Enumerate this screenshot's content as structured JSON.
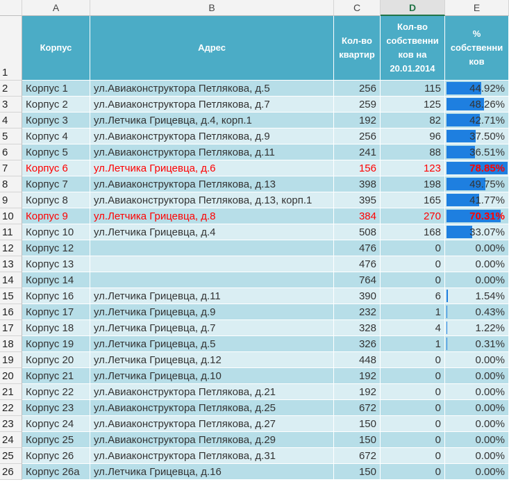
{
  "columns": [
    "A",
    "B",
    "C",
    "D",
    "E"
  ],
  "selected_column": 3,
  "row_numbers": [
    1,
    2,
    3,
    4,
    5,
    6,
    7,
    8,
    9,
    10,
    11,
    12,
    13,
    14,
    15,
    16,
    17,
    18,
    19,
    20,
    21,
    22,
    23,
    24,
    25,
    26
  ],
  "table": {
    "header": [
      [
        "Корпус"
      ],
      [
        "Адрес"
      ],
      [
        "Кол-во",
        "квартир"
      ],
      [
        "Кол-во",
        "собственни",
        "ков на",
        "20.01.2014"
      ],
      [
        "%",
        "собственни",
        "ков"
      ]
    ],
    "rows": [
      {
        "name": "Корпус 1",
        "address": "ул.Авиаконструктора Петлякова, д.5",
        "flats": 256,
        "owners": 115,
        "share": {
          "value": 44.92,
          "label": "44.92%"
        }
      },
      {
        "name": "Корпус 2",
        "address": "ул.Авиаконструктора Петлякова, д.7",
        "flats": 259,
        "owners": 125,
        "share": {
          "value": 48.26,
          "label": "48.26%"
        }
      },
      {
        "name": "Корпус 3",
        "address": "ул.Летчика Грицевца, д.4, корп.1",
        "flats": 192,
        "owners": 82,
        "share": {
          "value": 42.71,
          "label": "42.71%"
        }
      },
      {
        "name": "Корпус 4",
        "address": "ул.Авиаконструктора Петлякова, д.9",
        "flats": 256,
        "owners": 96,
        "share": {
          "value": 37.5,
          "label": "37.50%"
        }
      },
      {
        "name": "Корпус 5",
        "address": "ул.Авиаконструктора Петлякова, д.11",
        "flats": 241,
        "owners": 88,
        "share": {
          "value": 36.51,
          "label": "36.51%"
        }
      },
      {
        "name": "Корпус 6",
        "address": "ул.Летчика Грицевца, д.6",
        "flats": 156,
        "owners": 123,
        "share": {
          "value": 78.85,
          "label": "78.85%"
        },
        "highlighted": true
      },
      {
        "name": "Корпус 7",
        "address": "ул.Авиаконструктора Петлякова, д.13",
        "flats": 398,
        "owners": 198,
        "share": {
          "value": 49.75,
          "label": "49.75%"
        }
      },
      {
        "name": "Корпус 8",
        "address": "ул.Авиаконструктора Петлякова, д.13, корп.1",
        "flats": 395,
        "owners": 165,
        "share": {
          "value": 41.77,
          "label": "41.77%"
        }
      },
      {
        "name": "Корпус 9",
        "address": "ул.Летчика Грицевца, д.8",
        "flats": 384,
        "owners": 270,
        "share": {
          "value": 70.31,
          "label": "70.31%"
        },
        "highlighted": true
      },
      {
        "name": "Корпус 10",
        "address": "ул.Летчика Грицевца, д.4",
        "flats": 508,
        "owners": 168,
        "share": {
          "value": 33.07,
          "label": "33.07%"
        }
      },
      {
        "name": "Корпус 12",
        "address": null,
        "flats": 476,
        "owners": 0,
        "share": {
          "value": 0,
          "label": "0.00%"
        }
      },
      {
        "name": "Корпус 13",
        "address": null,
        "flats": 476,
        "owners": 0,
        "share": {
          "value": 0,
          "label": "0.00%"
        }
      },
      {
        "name": "Корпус 14",
        "address": null,
        "flats": 764,
        "owners": 0,
        "share": {
          "value": 0,
          "label": "0.00%"
        }
      },
      {
        "name": "Корпус 16",
        "address": "ул.Летчика Грицевца, д.11",
        "flats": 390,
        "owners": 6,
        "share": {
          "value": 1.54,
          "label": "1.54%"
        }
      },
      {
        "name": "Корпус 17",
        "address": "ул.Летчика Грицевца, д.9",
        "flats": 232,
        "owners": 1,
        "share": {
          "value": 0.43,
          "label": "0.43%"
        }
      },
      {
        "name": "Корпус 18",
        "address": "ул.Летчика Грицевца, д.7",
        "flats": 328,
        "owners": 4,
        "share": {
          "value": 1.22,
          "label": "1.22%"
        }
      },
      {
        "name": "Корпус 19",
        "address": "ул.Летчика Грицевца, д.5",
        "flats": 326,
        "owners": 1,
        "share": {
          "value": 0.31,
          "label": "0.31%"
        }
      },
      {
        "name": "Корпус 20",
        "address": "ул.Летчика Грицевца, д.12",
        "flats": 448,
        "owners": 0,
        "share": {
          "value": 0,
          "label": "0.00%"
        }
      },
      {
        "name": "Корпус 21",
        "address": "ул.Летчика Грицевца, д.10",
        "flats": 192,
        "owners": 0,
        "share": {
          "value": 0,
          "label": "0.00%"
        }
      },
      {
        "name": "Корпус 22",
        "address": "ул.Авиаконструктора Петлякова, д.21",
        "flats": 192,
        "owners": 0,
        "share": {
          "value": 0,
          "label": "0.00%"
        }
      },
      {
        "name": "Корпус 23",
        "address": "ул.Авиаконструктора Петлякова, д.25",
        "flats": 672,
        "owners": 0,
        "share": {
          "value": 0,
          "label": "0.00%"
        }
      },
      {
        "name": "Корпус 24",
        "address": "ул.Авиаконструктора Петлякова, д.27",
        "flats": 150,
        "owners": 0,
        "share": {
          "value": 0,
          "label": "0.00%"
        }
      },
      {
        "name": "Корпус 25",
        "address": "ул.Авиаконструктора Петлякова, д.29",
        "flats": 150,
        "owners": 0,
        "share": {
          "value": 0,
          "label": "0.00%"
        }
      },
      {
        "name": "Корпус 26",
        "address": "ул.Авиаконструктора Петлякова, д.31",
        "flats": 672,
        "owners": 0,
        "share": {
          "value": 0,
          "label": "0.00%"
        }
      },
      {
        "name": "Корпус 26а",
        "address": "ул.Летчика Грицевца, д.16",
        "flats": 150,
        "owners": 0,
        "share": {
          "value": 0,
          "label": "0.00%"
        }
      }
    ]
  }
}
